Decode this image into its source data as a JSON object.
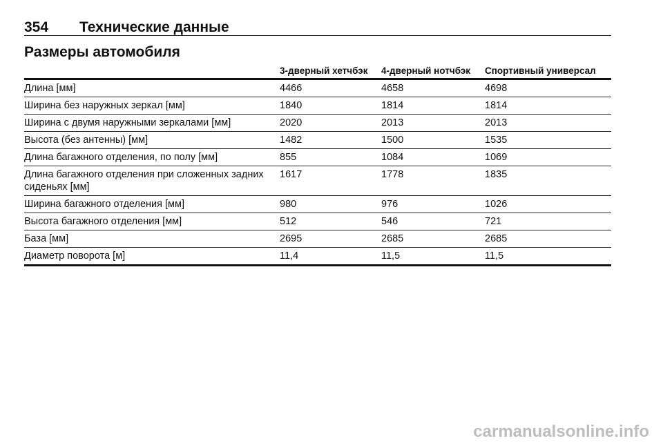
{
  "header": {
    "page_number": "354",
    "title": "Технические данные"
  },
  "section": {
    "title": "Размеры автомобиля"
  },
  "table": {
    "columns": [
      "",
      "3-дверный хетчбэк",
      "4-дверный нотчбэк",
      "Спортивный универсал"
    ],
    "rows": [
      [
        "Длина [мм]",
        "4466",
        "4658",
        "4698"
      ],
      [
        "Ширина без наружных зеркал [мм]",
        "1840",
        "1814",
        "1814"
      ],
      [
        "Ширина с двумя наружными зеркалами [мм]",
        "2020",
        "2013",
        "2013"
      ],
      [
        "Высота (без антенны) [мм]",
        "1482",
        "1500",
        "1535"
      ],
      [
        "Длина багажного отделения, по полу [мм]",
        "855",
        "1084",
        "1069"
      ],
      [
        "Длина багажного отделения при сложенных задних сиденьях [мм]",
        "1617",
        "1778",
        "1835"
      ],
      [
        "Ширина багажного отделения [мм]",
        "980",
        "976",
        "1026"
      ],
      [
        "Высота багажного отделения [мм]",
        "512",
        "546",
        "721"
      ],
      [
        "База [мм]",
        "2695",
        "2685",
        "2685"
      ],
      [
        "Диаметр поворота [м]",
        "11,4",
        "11,5",
        "11,5"
      ]
    ]
  },
  "watermark": "carmanualsonline.info"
}
